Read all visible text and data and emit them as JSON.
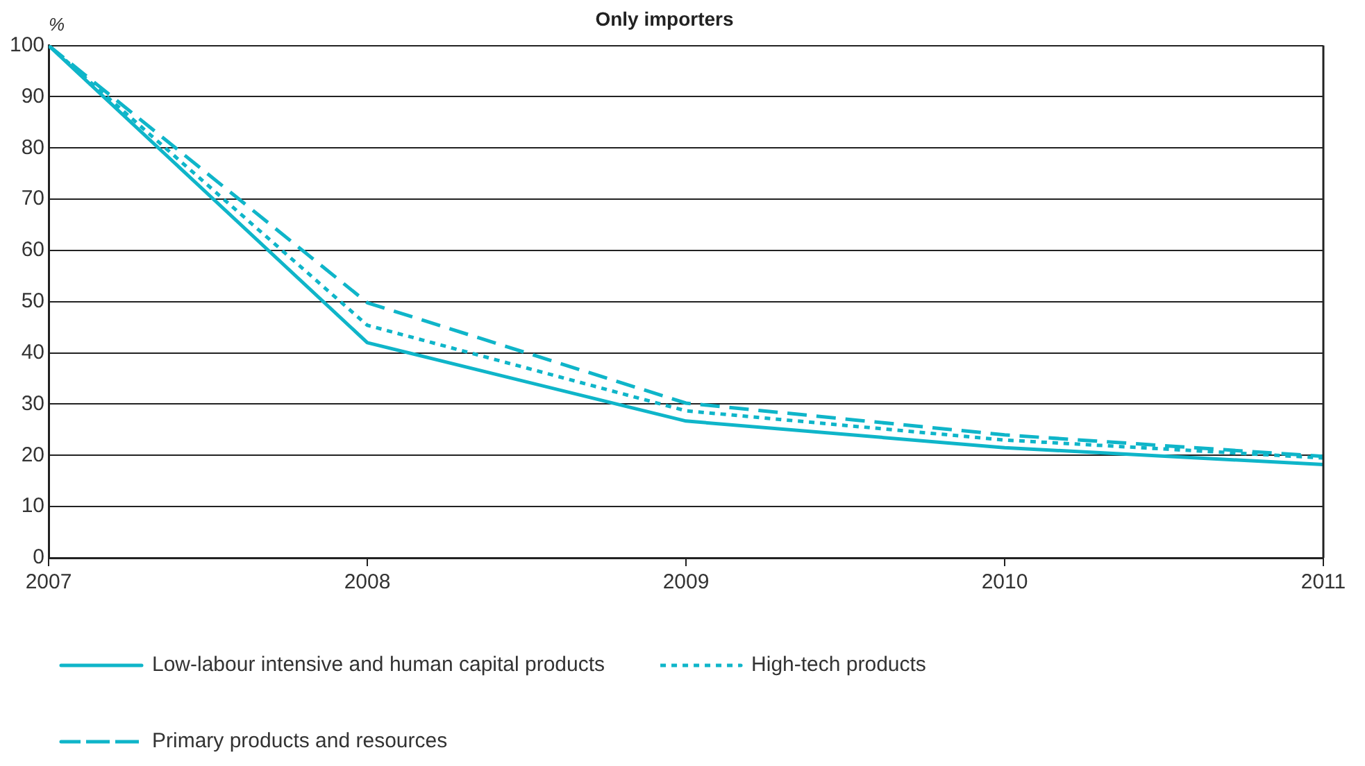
{
  "chart_data": {
    "type": "line",
    "title": "Only importers",
    "ylabel": "%",
    "x": [
      2007,
      2008,
      2009,
      2010,
      2011
    ],
    "series": [
      {
        "name": "Low-labour intensive and human capital products",
        "color": "#0fb5c9",
        "values": [
          100,
          42,
          26.7,
          21.5,
          18.2
        ],
        "line_style": "solid"
      },
      {
        "name": "High-tech products",
        "color": "#0fb5c9",
        "values": [
          100,
          45.4,
          28.7,
          23,
          19.5
        ],
        "line_style": "dotted"
      },
      {
        "name": "Primary products and resources",
        "color": "#0fb5c9",
        "values": [
          100,
          49.8,
          30.2,
          24,
          19.8
        ],
        "line_style": "dashed"
      }
    ],
    "xlim": [
      2007,
      2011
    ],
    "xticks": [
      2007,
      2008,
      2009,
      2010,
      2011
    ],
    "ylim": [
      0,
      100
    ],
    "yticks": [
      0,
      10,
      20,
      30,
      40,
      50,
      60,
      70,
      80,
      90,
      100
    ],
    "grid": "y",
    "legend": "bottom",
    "marker": "none"
  }
}
